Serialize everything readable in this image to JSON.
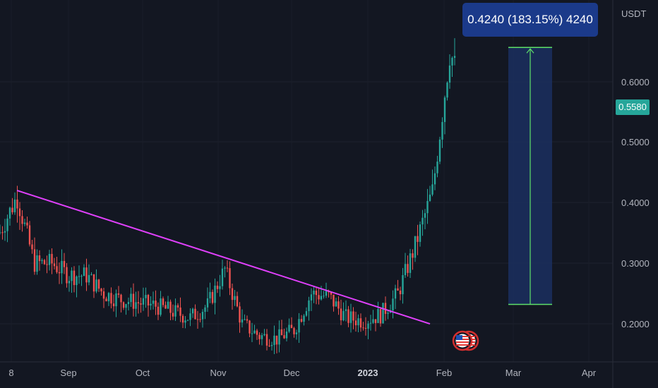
{
  "chart_data": {
    "type": "candlestick",
    "price_unit": "USDT",
    "x_labels": [
      "8",
      "Sep",
      "Oct",
      "Nov",
      "Dec",
      "2023",
      "Feb",
      "Mar",
      "Apr"
    ],
    "y_ticks": [
      "0.2000",
      "0.3000",
      "0.4000",
      "0.5000",
      "0.6000"
    ],
    "ylim": [
      0.14,
      0.67
    ],
    "current_price": "0.5580",
    "measurement_label": "0.4240 (183.15%) 4240",
    "measurement": {
      "from": 0.232,
      "to": 0.656
    },
    "trendline": {
      "start": {
        "date": "2022-08-08",
        "price": 0.42
      },
      "end": {
        "date": "2023-01-22",
        "price": 0.236
      }
    },
    "colors": {
      "up": "#26a69a",
      "down": "#ef5350",
      "trendline": "#e040fb",
      "measure_fill": "#1b2d5c",
      "measure_line": "#5ee06a",
      "badge": "#26a69a"
    },
    "series": [
      {
        "date": "2022-08-01",
        "close": 0.35
      },
      {
        "date": "2022-08-08",
        "close": 0.41
      },
      {
        "date": "2022-08-15",
        "close": 0.3
      },
      {
        "date": "2022-08-22",
        "close": 0.3
      },
      {
        "date": "2022-08-29",
        "close": 0.28
      },
      {
        "date": "2022-09-05",
        "close": 0.28
      },
      {
        "date": "2022-09-12",
        "close": 0.25
      },
      {
        "date": "2022-09-19",
        "close": 0.24
      },
      {
        "date": "2022-09-26",
        "close": 0.235
      },
      {
        "date": "2022-10-03",
        "close": 0.23
      },
      {
        "date": "2022-10-10",
        "close": 0.22
      },
      {
        "date": "2022-10-17",
        "close": 0.21
      },
      {
        "date": "2022-10-24",
        "close": 0.23
      },
      {
        "date": "2022-10-31",
        "close": 0.29
      },
      {
        "date": "2022-11-07",
        "close": 0.2
      },
      {
        "date": "2022-11-14",
        "close": 0.18
      },
      {
        "date": "2022-11-21",
        "close": 0.175
      },
      {
        "date": "2022-11-28",
        "close": 0.19
      },
      {
        "date": "2022-12-05",
        "close": 0.25
      },
      {
        "date": "2022-12-12",
        "close": 0.245
      },
      {
        "date": "2022-12-19",
        "close": 0.21
      },
      {
        "date": "2022-12-26",
        "close": 0.205
      },
      {
        "date": "2023-01-02",
        "close": 0.215
      },
      {
        "date": "2023-01-09",
        "close": 0.25
      },
      {
        "date": "2023-01-16",
        "close": 0.33
      },
      {
        "date": "2023-01-23",
        "close": 0.42
      },
      {
        "date": "2023-01-30",
        "close": 0.65
      },
      {
        "date": "2023-02-06",
        "close": 0.558
      }
    ]
  }
}
